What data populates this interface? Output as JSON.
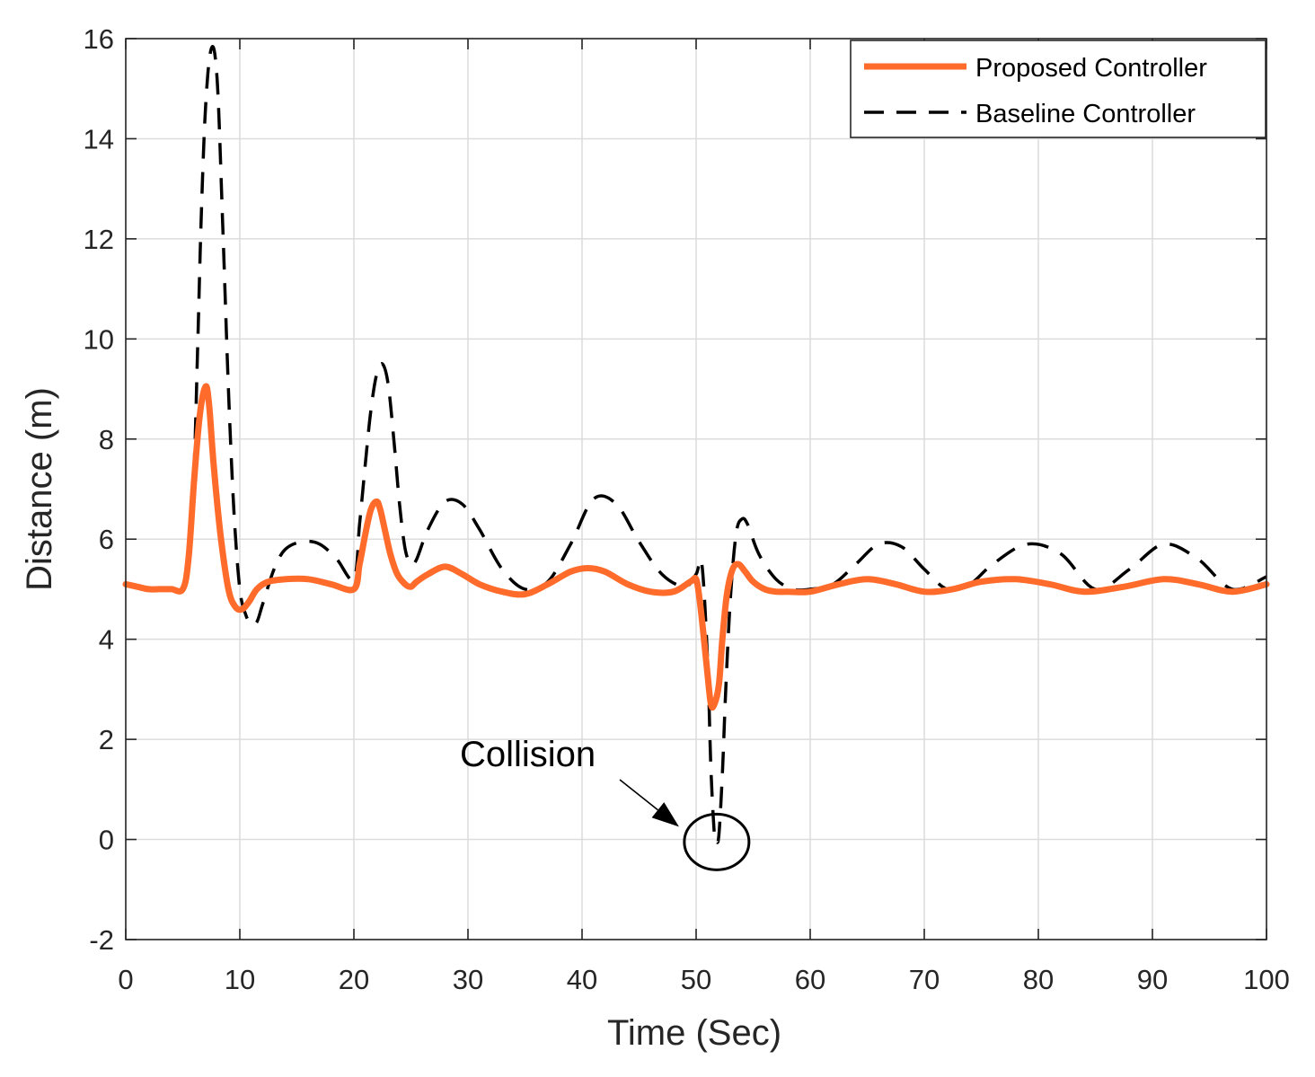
{
  "chart_data": {
    "type": "line",
    "title": "",
    "xlabel": "Time (Sec)",
    "ylabel": "Distance (m)",
    "xlim": [
      0,
      100
    ],
    "ylim": [
      -2,
      16
    ],
    "xticks": [
      0,
      10,
      20,
      30,
      40,
      50,
      60,
      70,
      80,
      90,
      100
    ],
    "yticks": [
      -2,
      0,
      2,
      4,
      6,
      8,
      10,
      12,
      14,
      16
    ],
    "grid": true,
    "legend_position": "top-right",
    "series": [
      {
        "name": "Proposed Controller",
        "color": "#FF6B2B",
        "style": "solid",
        "x": [
          0,
          1,
          2,
          3,
          4,
          5,
          5.5,
          6,
          6.5,
          7,
          7.3,
          7.7,
          8.3,
          9,
          9.6,
          10.2,
          10.8,
          11.5,
          12.5,
          14,
          16,
          18,
          20,
          20.5,
          21,
          21.5,
          22,
          22.3,
          22.7,
          23.2,
          23.8,
          24.5,
          25,
          25.5,
          26.5,
          28,
          29.5,
          31,
          33,
          35,
          37,
          39,
          40.5,
          42,
          44,
          46,
          48,
          49.5,
          50,
          50.3,
          50.6,
          51,
          51.3,
          51.6,
          52,
          52.3,
          52.7,
          53.2,
          53.7,
          54.3,
          55,
          56,
          57,
          58,
          60,
          62.5,
          65,
          67.5,
          70,
          72.5,
          75,
          78,
          81,
          84,
          87.5,
          91,
          94,
          97,
          100
        ],
        "y": [
          5.1,
          5.05,
          5.0,
          5.0,
          5.0,
          5.0,
          5.6,
          7.2,
          8.5,
          9.05,
          8.7,
          7.5,
          6.1,
          5.0,
          4.65,
          4.6,
          4.75,
          5.0,
          5.15,
          5.2,
          5.2,
          5.1,
          5.0,
          5.5,
          6.1,
          6.6,
          6.75,
          6.6,
          6.2,
          5.7,
          5.3,
          5.1,
          5.05,
          5.15,
          5.3,
          5.45,
          5.3,
          5.1,
          4.95,
          4.9,
          5.1,
          5.35,
          5.42,
          5.35,
          5.1,
          4.95,
          4.95,
          5.15,
          5.2,
          4.8,
          4.2,
          3.3,
          2.7,
          2.7,
          3.1,
          4.0,
          4.9,
          5.4,
          5.5,
          5.35,
          5.15,
          5.0,
          4.95,
          4.95,
          4.95,
          5.1,
          5.2,
          5.1,
          4.95,
          5.0,
          5.15,
          5.2,
          5.1,
          4.95,
          5.05,
          5.2,
          5.1,
          4.95,
          5.1
        ]
      },
      {
        "name": "Baseline Controller",
        "color": "#000000",
        "style": "dashed",
        "x": [
          0,
          2,
          4,
          5,
          5.5,
          6,
          6.3,
          6.6,
          6.9,
          7.2,
          7.5,
          7.8,
          8.1,
          8.5,
          9,
          9.5,
          10,
          10.5,
          11,
          11.5,
          12,
          13,
          14,
          15.5,
          17,
          18.5,
          20,
          20.5,
          21,
          21.5,
          22,
          22.5,
          23,
          23.5,
          24,
          24.5,
          25,
          25.5,
          26.5,
          28,
          29.5,
          31,
          33,
          35,
          37,
          39,
          41,
          43,
          45,
          47,
          49,
          50,
          50.5,
          51,
          51.3,
          51.6,
          51.8,
          52,
          52.3,
          52.6,
          53,
          53.5,
          54,
          54.5,
          55.5,
          57,
          58.5,
          60,
          62,
          64,
          66,
          68,
          70,
          72,
          74,
          76,
          79,
          82,
          85,
          88,
          91,
          94,
          97,
          100
        ],
        "y": [
          5.1,
          5.0,
          5.0,
          5.0,
          5.6,
          7.5,
          9.8,
          12.3,
          14.2,
          15.3,
          15.8,
          15.7,
          14.8,
          12.3,
          9.0,
          6.5,
          5.0,
          4.5,
          4.3,
          4.35,
          4.7,
          5.4,
          5.8,
          5.95,
          5.9,
          5.6,
          5.2,
          6.3,
          7.5,
          8.6,
          9.3,
          9.5,
          9.1,
          8.0,
          6.7,
          5.8,
          5.5,
          5.6,
          6.2,
          6.75,
          6.7,
          6.2,
          5.4,
          5.0,
          5.15,
          5.9,
          6.8,
          6.7,
          5.95,
          5.3,
          5.05,
          5.3,
          5.5,
          3.6,
          1.4,
          0.1,
          -0.05,
          0.1,
          1.3,
          3.0,
          4.8,
          6.1,
          6.4,
          6.3,
          5.7,
          5.2,
          5.0,
          5.0,
          5.1,
          5.5,
          5.9,
          5.85,
          5.4,
          5.0,
          5.1,
          5.5,
          5.9,
          5.7,
          5.0,
          5.4,
          5.9,
          5.6,
          5.0,
          5.25
        ]
      }
    ],
    "annotations": [
      {
        "text": "Collision",
        "arrow_to": [
          48.5,
          -0.05
        ],
        "circle_center": [
          51.8,
          -0.05
        ]
      }
    ]
  }
}
